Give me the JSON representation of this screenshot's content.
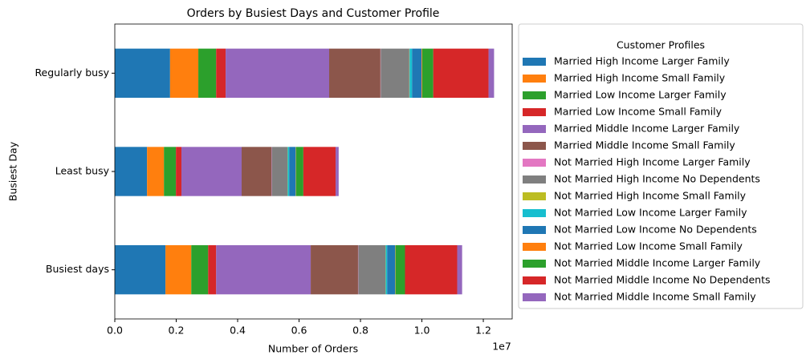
{
  "chart_data": {
    "type": "bar",
    "orientation": "horizontal",
    "stacked": true,
    "title": "Orders by Busiest Days and Customer Profile",
    "x_label": "Number of Orders",
    "y_label": "Busiest Day",
    "x_offset_label": "1e7",
    "legend_title": "Customer Profiles",
    "categories": [
      "Busiest days",
      "Least busy",
      "Regularly busy"
    ],
    "xlim": [
      0,
      1.294
    ],
    "xticks": [
      {
        "value": 0,
        "label": "0.0"
      },
      0.2,
      0.4,
      0.6,
      0.8,
      {
        "value": 1,
        "label": "1.0"
      },
      1.2
    ],
    "series": [
      {
        "name": "Married High Income Larger Family",
        "color": "#1f77b4",
        "values": [
          0.165,
          0.105,
          0.18
        ]
      },
      {
        "name": "Married High Income Small Family",
        "color": "#ff7f0e",
        "values": [
          0.084,
          0.055,
          0.092
        ]
      },
      {
        "name": "Married Low Income Larger Family",
        "color": "#2ca02c",
        "values": [
          0.055,
          0.039,
          0.058
        ]
      },
      {
        "name": "Married Low Income Small Family",
        "color": "#d62728",
        "values": [
          0.026,
          0.018,
          0.031
        ]
      },
      {
        "name": "Married Middle Income Larger Family",
        "color": "#9467bd",
        "values": [
          0.308,
          0.196,
          0.337
        ]
      },
      {
        "name": "Married Middle Income Small Family",
        "color": "#8c564b",
        "values": [
          0.154,
          0.097,
          0.167
        ]
      },
      {
        "name": "Not Married High Income Larger Family",
        "color": "#e377c2",
        "values": [
          0.001,
          0.001,
          0.001
        ]
      },
      {
        "name": "Not Married High Income No Dependents",
        "color": "#7f7f7f",
        "values": [
          0.088,
          0.051,
          0.093
        ]
      },
      {
        "name": "Not Married High Income Small Family",
        "color": "#bcbd22",
        "values": [
          0.001,
          0.001,
          0.001
        ]
      },
      {
        "name": "Not Married Low Income Larger Family",
        "color": "#17becf",
        "values": [
          0.005,
          0.005,
          0.008
        ]
      },
      {
        "name": "Not Married Low Income No Dependents",
        "color": "#1f77b4",
        "values": [
          0.026,
          0.021,
          0.031
        ]
      },
      {
        "name": "Not Married Low Income Small Family",
        "color": "#ff7f0e",
        "values": [
          0.001,
          0.001,
          0.002
        ]
      },
      {
        "name": "Not Married Middle Income Larger Family",
        "color": "#2ca02c",
        "values": [
          0.031,
          0.024,
          0.036
        ]
      },
      {
        "name": "Not Married Middle Income No Dependents",
        "color": "#d62728",
        "values": [
          0.17,
          0.105,
          0.18
        ]
      },
      {
        "name": "Not Married Middle Income Small Family",
        "color": "#9467bd",
        "values": [
          0.016,
          0.01,
          0.018
        ]
      }
    ]
  }
}
